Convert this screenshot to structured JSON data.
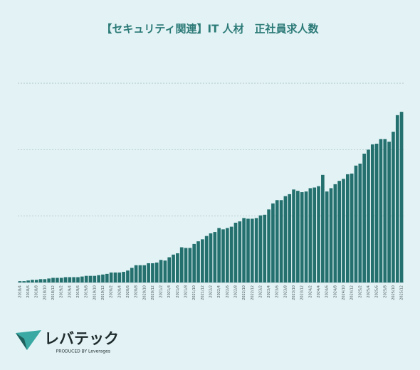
{
  "chart_data": {
    "type": "bar",
    "title": "【セキュリティ関連】IT 人材　正社員求人数",
    "categories": [
      "2018/4",
      null,
      "2018/6",
      null,
      "2018/8",
      null,
      "2018/10",
      null,
      "2018/12",
      null,
      "2019/2",
      null,
      "2019/4",
      null,
      "2019/6",
      null,
      "2019/8",
      null,
      "2019/10",
      null,
      "2019/12",
      null,
      "2020/2",
      null,
      "2020/4",
      null,
      "2020/6",
      null,
      "2020/8",
      null,
      "2020/10",
      null,
      "2020/12",
      null,
      "2021/2",
      null,
      "2021/4",
      null,
      "2021/6",
      null,
      "2021/8",
      null,
      "2021/10",
      null,
      "2021/12",
      null,
      "2022/2",
      null,
      "2022/4",
      null,
      "2022/6",
      null,
      "2022/8",
      null,
      "2022/10",
      null,
      "2022/12",
      null,
      "2023/2",
      null,
      "2023/4",
      null,
      "2023/6",
      null,
      "2023/8",
      null,
      "2023/10",
      null,
      "2023/12",
      null,
      "2024/2",
      null,
      "2024/4",
      null,
      "2024/6",
      null,
      "2024/8",
      null,
      "2024/10",
      null,
      "2024/12",
      null,
      "2025/2",
      null,
      "2025/4",
      null,
      "2025/6",
      null,
      "2025/8",
      null,
      "2025/10",
      null,
      "2025/12"
    ],
    "values": [
      0.02,
      0.02,
      0.03,
      0.04,
      0.04,
      0.05,
      0.05,
      0.06,
      0.07,
      0.07,
      0.07,
      0.08,
      0.08,
      0.08,
      0.08,
      0.09,
      0.1,
      0.1,
      0.1,
      0.11,
      0.12,
      0.13,
      0.15,
      0.15,
      0.15,
      0.16,
      0.18,
      0.22,
      0.26,
      0.26,
      0.26,
      0.29,
      0.29,
      0.3,
      0.34,
      0.33,
      0.38,
      0.42,
      0.44,
      0.53,
      0.52,
      0.52,
      0.58,
      0.62,
      0.65,
      0.7,
      0.74,
      0.76,
      0.82,
      0.8,
      0.82,
      0.84,
      0.9,
      0.92,
      0.97,
      0.96,
      0.96,
      0.97,
      1.01,
      1.02,
      1.1,
      1.19,
      1.24,
      1.24,
      1.3,
      1.33,
      1.4,
      1.38,
      1.36,
      1.37,
      1.42,
      1.43,
      1.45,
      1.62,
      1.37,
      1.42,
      1.48,
      1.53,
      1.56,
      1.63,
      1.64,
      1.76,
      1.79,
      1.94,
      2.0,
      2.08,
      2.09,
      2.16,
      2.16,
      2.12,
      2.27,
      2.52,
      2.57
    ],
    "color": "#23706e",
    "ylim": [
      0,
      3
    ],
    "yticks": [
      1,
      2,
      3
    ],
    "grid": true
  },
  "logo": {
    "name": "レバテック",
    "tagline": "PRODUCED BY Leverages"
  }
}
